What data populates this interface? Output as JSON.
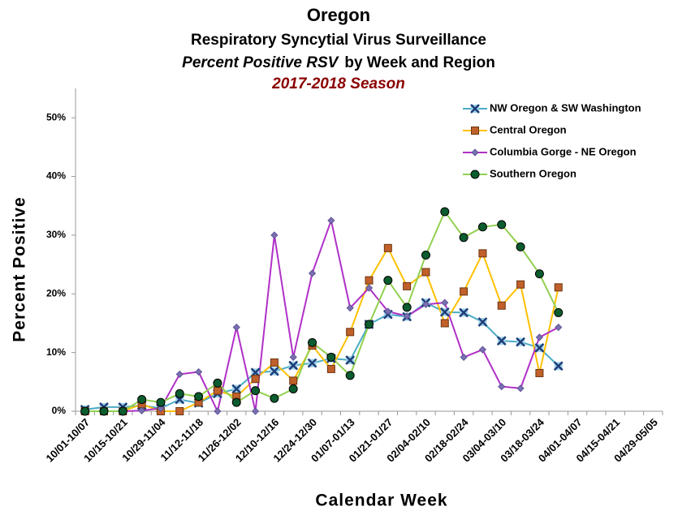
{
  "chart_data": {
    "type": "line",
    "title": "Oregon",
    "subtitle": "Respiratory Syncytial Virus Surveillance",
    "subtitle_italic": "Percent Positive RSV",
    "subtitle_rest": "by Week and Region",
    "season": "2017-2018 Season",
    "x_label": "Calendar Week",
    "y_label": "Percent Positive",
    "categories": [
      "10/01-10/07",
      null,
      "10/15-10/21",
      null,
      "10/29-11/04",
      null,
      "11/12-11/18",
      null,
      "11/26-12/02",
      null,
      "12/10-12/16",
      null,
      "12/24-12/30",
      null,
      "01/07-01/13",
      null,
      "01/21-01/27",
      null,
      "02/04-02/10",
      null,
      "02/18-02/24",
      null,
      "03/04-03/10",
      null,
      "03/18-03/24",
      null,
      "04/01-04/07",
      null,
      "04/15-04/21",
      null,
      "04/29-05/05"
    ],
    "ylim": [
      0,
      55
    ],
    "yticks": [
      {
        "value": 0,
        "label": "0%"
      },
      {
        "value": 10,
        "label": "10%"
      },
      {
        "value": 20,
        "label": "20%"
      },
      {
        "value": 30,
        "label": "30%"
      },
      {
        "value": 40,
        "label": "40%"
      },
      {
        "value": 50,
        "label": "50%"
      }
    ],
    "grid": false,
    "legend": "top-right",
    "series": [
      {
        "name": "NW Oregon & SW Washington",
        "color": "#4bacc6",
        "marker": "x",
        "marker_color": "#1f3e78",
        "values": [
          0.3,
          0.7,
          0.7,
          1.0,
          0.5,
          2.0,
          1.4,
          3.0,
          3.8,
          6.6,
          6.8,
          7.8,
          8.2,
          9.0,
          8.7,
          14.8,
          16.5,
          16.1,
          18.5,
          16.9,
          16.8,
          15.2,
          12.0,
          11.8,
          10.8,
          7.7,
          null,
          null,
          null,
          null,
          null
        ]
      },
      {
        "name": "Central Oregon",
        "color": "#ffc000",
        "marker": "square",
        "marker_color": "#c0602a",
        "values": [
          0,
          0,
          0,
          1.2,
          0,
          0,
          1.5,
          3.5,
          2.5,
          5.5,
          8.3,
          5.2,
          11.2,
          7.2,
          13.5,
          22.3,
          27.8,
          21.3,
          23.7,
          15.0,
          20.4,
          26.9,
          18.0,
          21.6,
          6.5,
          21.1,
          null,
          null,
          null,
          null,
          null
        ]
      },
      {
        "name": "Columbia Gorge - NE Oregon",
        "color": "#b030c8",
        "marker": "diamond",
        "marker_color": "#7a6fb0",
        "values": [
          0,
          0,
          0,
          0.1,
          0.5,
          6.3,
          6.7,
          0,
          14.3,
          0,
          30.0,
          9.2,
          23.5,
          32.5,
          17.6,
          21.0,
          17.0,
          16.2,
          18.2,
          18.5,
          9.2,
          10.5,
          4.2,
          3.9,
          12.6,
          14.3,
          null,
          null,
          null,
          null,
          null
        ]
      },
      {
        "name": "Southern Oregon",
        "color": "#92d050",
        "marker": "circle",
        "marker_color": "#0b5c2e",
        "values": [
          0,
          0,
          0,
          2.0,
          1.5,
          3.0,
          2.5,
          4.8,
          1.5,
          3.5,
          2.2,
          3.8,
          11.7,
          9.2,
          6.1,
          14.8,
          22.3,
          17.7,
          26.6,
          34.0,
          29.6,
          31.4,
          31.8,
          28.0,
          23.4,
          16.8,
          null,
          null,
          null,
          null,
          null
        ]
      }
    ]
  }
}
